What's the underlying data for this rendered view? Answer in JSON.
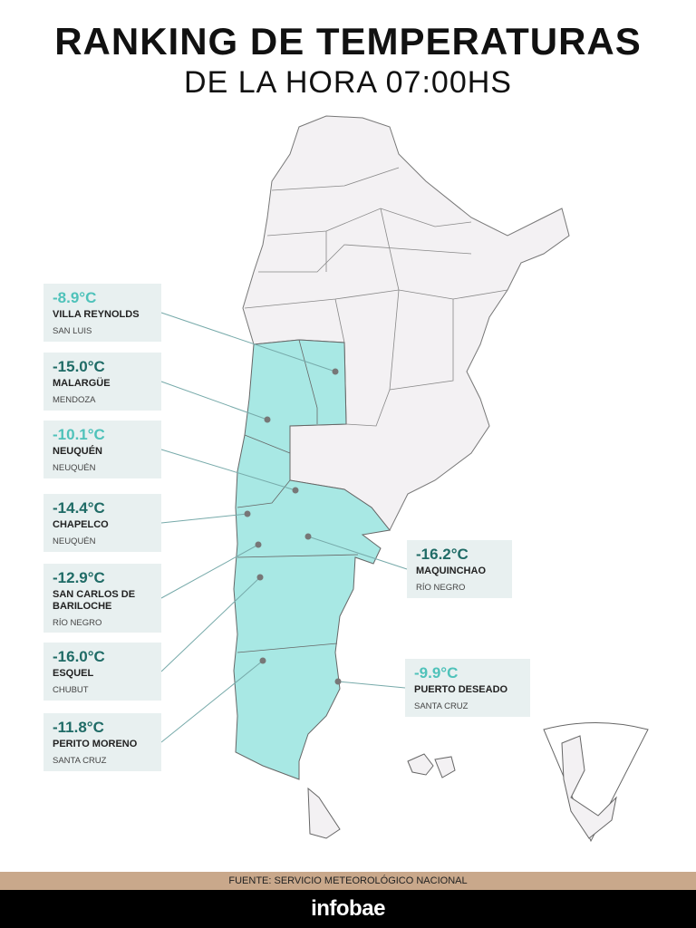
{
  "header": {
    "title": "RANKING DE TEMPERATURAS",
    "subtitle": "DE LA HORA 07:00HS"
  },
  "stations": [
    {
      "temp": "-8.9°C",
      "name": "VILLA REYNOLDS",
      "province": "SAN LUIS"
    },
    {
      "temp": "-15.0°C",
      "name": "MALARGÜE",
      "province": "MENDOZA"
    },
    {
      "temp": "-10.1°C",
      "name": "NEUQUÉN",
      "province": "NEUQUÉN"
    },
    {
      "temp": "-14.4°C",
      "name": "CHAPELCO",
      "province": "NEUQUÉN"
    },
    {
      "temp": "-12.9°C",
      "name": "SAN CARLOS DE BARILOCHE",
      "province": "RÍO NEGRO"
    },
    {
      "temp": "-16.0°C",
      "name": "ESQUEL",
      "province": "CHUBUT"
    },
    {
      "temp": "-11.8°C",
      "name": "PERITO MORENO",
      "province": "SANTA CRUZ"
    },
    {
      "temp": "-16.2°C",
      "name": "MAQUINCHAO",
      "province": "RÍO NEGRO"
    },
    {
      "temp": "-9.9°C",
      "name": "PUERTO DESEADO",
      "province": "SANTA CRUZ"
    }
  ],
  "footer": {
    "source": "FUENTE: SERVICIO METEOROLÓGICO NACIONAL",
    "brand": "infobae"
  }
}
